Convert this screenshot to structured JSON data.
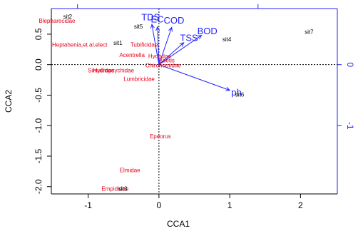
{
  "chart_data": {
    "type": "scatter",
    "subtype": "cca-biplot",
    "xlabel": "CCA1",
    "ylabel": "CCA2",
    "xlim": [
      -1.52,
      2.52
    ],
    "ylim": [
      -2.12,
      0.92
    ],
    "x_ticks": [
      -1,
      0,
      1,
      2
    ],
    "y_ticks": [
      0.5,
      0.0,
      -0.5,
      -1.0,
      -1.5,
      -2.0
    ],
    "x_tick_labels": [
      "-1",
      "0",
      "1",
      "2"
    ],
    "y_tick_labels": [
      "0.5",
      "0.0",
      "-0.5",
      "-1.0",
      "-1.5",
      "-2.0"
    ],
    "secondary_axes": {
      "right_ticks": [
        0,
        -1
      ],
      "right_tick_labels": [
        "0",
        "-1"
      ],
      "top_ticks": [
        -1.15,
        1.4
      ],
      "color": "#2222ff"
    },
    "species_color": "#e8001a",
    "site_color": "#000000",
    "env_color": "#2222ff",
    "species": [
      {
        "label": "Blepharecidae",
        "x": -1.44,
        "y": 0.72
      },
      {
        "label": "Heptahenia,et al.elect",
        "x": -1.12,
        "y": 0.33
      },
      {
        "label": "Tubificidae",
        "x": -0.21,
        "y": 0.33
      },
      {
        "label": "Acentrella",
        "x": -0.38,
        "y": 0.16
      },
      {
        "label": "Hydridae",
        "x": 0.01,
        "y": 0.14
      },
      {
        "label": "Baetis",
        "x": 0.11,
        "y": 0.07
      },
      {
        "label": "Chironomidae",
        "x": 0.06,
        "y": -0.01
      },
      {
        "label": "Simuliidae",
        "x": -0.82,
        "y": -0.09
      },
      {
        "label": "Hydropsychidae",
        "x": -0.64,
        "y": -0.09
      },
      {
        "label": "Lumbricidae",
        "x": -0.28,
        "y": -0.23
      },
      {
        "label": "Epeorus",
        "x": 0.02,
        "y": -1.17
      },
      {
        "label": "Elmidae",
        "x": -0.41,
        "y": -1.73
      },
      {
        "label": "Empididae",
        "x": -0.62,
        "y": -2.03
      }
    ],
    "sites": [
      {
        "label": "sit2",
        "x": -1.29,
        "y": 0.79
      },
      {
        "label": "sit5",
        "x": -0.29,
        "y": 0.63
      },
      {
        "label": "sit1",
        "x": -0.58,
        "y": 0.36
      },
      {
        "label": "sit4",
        "x": 0.96,
        "y": 0.42
      },
      {
        "label": "sit7",
        "x": 2.12,
        "y": 0.54
      },
      {
        "label": "sit6",
        "x": 1.14,
        "y": -0.49
      },
      {
        "label": "sit3",
        "x": -0.51,
        "y": -2.03
      }
    ],
    "env_vectors": [
      {
        "label": "TDS",
        "x": -0.1,
        "y": 0.66,
        "size": 13
      },
      {
        "label": "EC",
        "x": -0.02,
        "y": 0.62,
        "size": 13
      },
      {
        "label": "COD",
        "x": 0.18,
        "y": 0.61,
        "size": 13
      },
      {
        "label": "TSS",
        "x": 0.35,
        "y": 0.36,
        "size": 13
      },
      {
        "label": "BOD",
        "x": 0.6,
        "y": 0.48,
        "size": 13
      },
      {
        "label": "ph",
        "x": 1.0,
        "y": -0.42,
        "size": 13
      }
    ]
  }
}
